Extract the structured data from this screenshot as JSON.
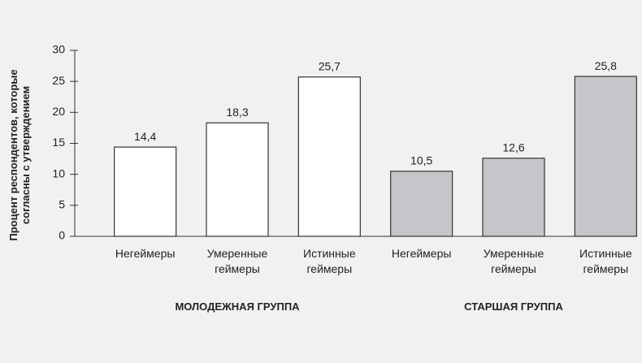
{
  "chart_data": {
    "type": "bar",
    "y_label": "Процент респондентов, которые согласны с утверждением",
    "ylim": [
      0,
      30
    ],
    "yticks": [
      0,
      5,
      10,
      15,
      20,
      25,
      30
    ],
    "series": [
      {
        "name": "МОЛОДЕЖНАЯ ГРУППА",
        "color": "#ffffff",
        "categories": [
          "Негеймеры",
          "Умеренные геймеры",
          "Истинные геймеры"
        ],
        "values": [
          14.4,
          18.3,
          25.7
        ],
        "value_labels": [
          "14,4",
          "18,3",
          "25,7"
        ]
      },
      {
        "name": "СТАРШАЯ ГРУППА",
        "color": "#c6c6ca",
        "categories": [
          "Негеймеры",
          "Умеренные геймеры",
          "Истинные геймеры"
        ],
        "values": [
          10.5,
          12.6,
          25.8
        ],
        "value_labels": [
          "10,5",
          "12,6",
          "25,8"
        ]
      }
    ]
  }
}
